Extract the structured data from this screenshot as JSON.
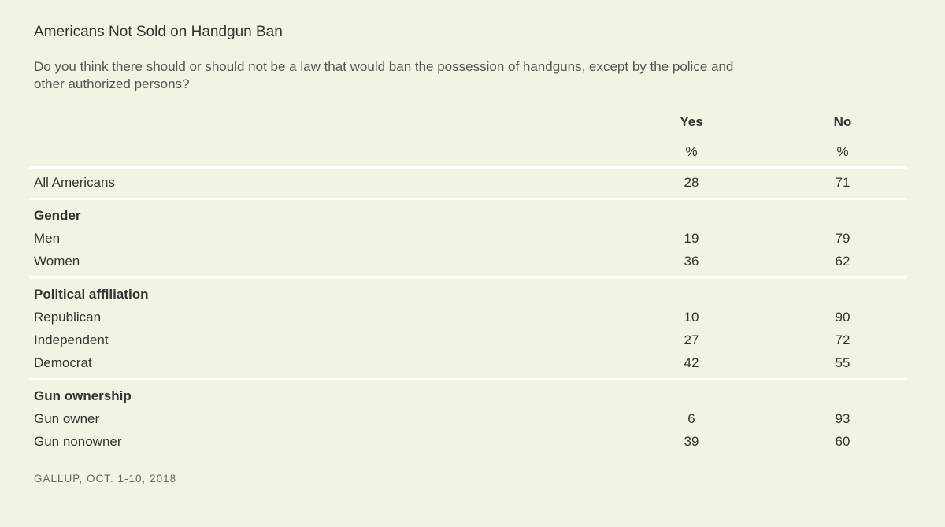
{
  "chart_data": {
    "type": "table",
    "title": "Americans Not Sold on Handgun Ban",
    "subtitle": "Do you think there should or should not be a law that would ban the possession of handguns, except by the police and other authorized persons?",
    "columns": [
      {
        "name": "Yes",
        "unit": "%"
      },
      {
        "name": "No",
        "unit": "%"
      }
    ],
    "groups": [
      {
        "label": "",
        "rows": [
          {
            "label": "All Americans",
            "values": [
              28,
              71
            ]
          }
        ]
      },
      {
        "label": "Gender",
        "rows": [
          {
            "label": "Men",
            "values": [
              19,
              79
            ]
          },
          {
            "label": "Women",
            "values": [
              36,
              62
            ]
          }
        ]
      },
      {
        "label": "Political affiliation",
        "rows": [
          {
            "label": "Republican",
            "values": [
              10,
              90
            ]
          },
          {
            "label": "Independent",
            "values": [
              27,
              72
            ]
          },
          {
            "label": "Democrat",
            "values": [
              42,
              55
            ]
          }
        ]
      },
      {
        "label": "Gun ownership",
        "rows": [
          {
            "label": "Gun owner",
            "values": [
              6,
              93
            ]
          },
          {
            "label": "Gun nonowner",
            "values": [
              39,
              60
            ]
          }
        ]
      }
    ],
    "source": "GALLUP, OCT. 1-10, 2018"
  },
  "colors": {
    "background": "#f0f4e2",
    "divider": "#ffffff",
    "text": "#333333"
  }
}
